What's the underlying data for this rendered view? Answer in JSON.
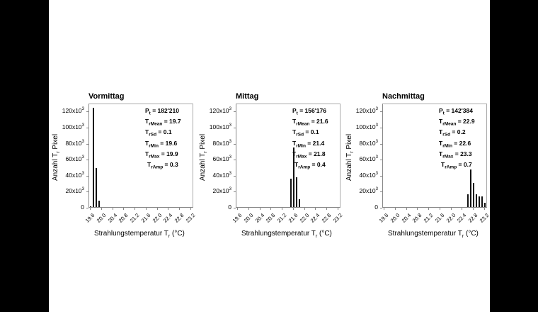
{
  "chart_data": [
    {
      "type": "bar",
      "title": "Vormittag",
      "xlabel": "Strahlungstemperatur Tr (°C)",
      "ylabel": "Anzahl Tr Pixel",
      "ylim": [
        0,
        130000
      ],
      "xlim": [
        19.6,
        23.3
      ],
      "yticks": [
        "0",
        "20x10³",
        "40x10³",
        "60x10³",
        "80x10³",
        "100x10³",
        "120x10³"
      ],
      "xticks": [
        "19.6",
        "20.0",
        "20.4",
        "20.8",
        "21.2",
        "21.6",
        "22.0",
        "22.4",
        "22.8",
        "23.2"
      ],
      "categories": [
        19.6,
        19.7,
        19.8,
        19.9
      ],
      "values": [
        1000,
        124000,
        49000,
        8000
      ],
      "annotations": {
        "Pt": "182'210",
        "TrMean": "19.7",
        "TrSd": "0.1",
        "TrMin": "19.6",
        "TrMax": "19.9",
        "TrAmp": "0.3"
      }
    },
    {
      "type": "bar",
      "title": "Mittag",
      "xlabel": "Strahlungstemperatur Tr (°C)",
      "ylabel": "Anzahl Tr Pixel",
      "ylim": [
        0,
        130000
      ],
      "xlim": [
        19.6,
        23.3
      ],
      "yticks": [
        "0",
        "20x10³",
        "40x10³",
        "60x10³",
        "80x10³",
        "100x10³",
        "120x10³"
      ],
      "xticks": [
        "19.6",
        "20.0",
        "20.4",
        "20.8",
        "21.2",
        "21.6",
        "22.0",
        "22.4",
        "22.8",
        "23.2"
      ],
      "categories": [
        21.5,
        21.6,
        21.7,
        21.8
      ],
      "values": [
        35000,
        74000,
        37000,
        10000
      ],
      "annotations": {
        "Pt": "156'176",
        "TrMean": "21.6",
        "TrSd": "0.1",
        "TrMin": "21.4",
        "TrMax": "21.8",
        "TrAmp": "0.4"
      }
    },
    {
      "type": "bar",
      "title": "Nachmittag",
      "xlabel": "Strahlungstemperatur Tr (°C)",
      "ylabel": "Anzahl Tr Pixel",
      "ylim": [
        0,
        130000
      ],
      "xlim": [
        19.6,
        23.3
      ],
      "yticks": [
        "0",
        "20x10³",
        "40x10³",
        "60x10³",
        "80x10³",
        "100x10³",
        "120x10³"
      ],
      "xticks": [
        "19.6",
        "20.0",
        "20.4",
        "20.8",
        "21.2",
        "21.6",
        "22.0",
        "22.4",
        "22.8",
        "23.2"
      ],
      "categories": [
        22.6,
        22.7,
        22.8,
        22.9,
        23.0,
        23.1,
        23.2
      ],
      "values": [
        16000,
        47000,
        30000,
        16000,
        13000,
        13000,
        5000
      ],
      "annotations": {
        "Pt": "142'384",
        "TrMean": "22.9",
        "TrSd": "0.2",
        "TrMin": "22.6",
        "TrMax": "23.3",
        "TrAmp": "0.7"
      }
    }
  ],
  "labels": {
    "stat_prefix": "T",
    "stat_r": "r",
    "pt_prefix": "P",
    "pt_sub": "t",
    "xlabel_main": "Strahlungstemperatur T",
    "xlabel_sub": "r",
    "xlabel_unit": " (°C)",
    "ylabel_main": "Anzahl T",
    "ylabel_sub": "r",
    "ylabel_tail": " Pixel"
  }
}
